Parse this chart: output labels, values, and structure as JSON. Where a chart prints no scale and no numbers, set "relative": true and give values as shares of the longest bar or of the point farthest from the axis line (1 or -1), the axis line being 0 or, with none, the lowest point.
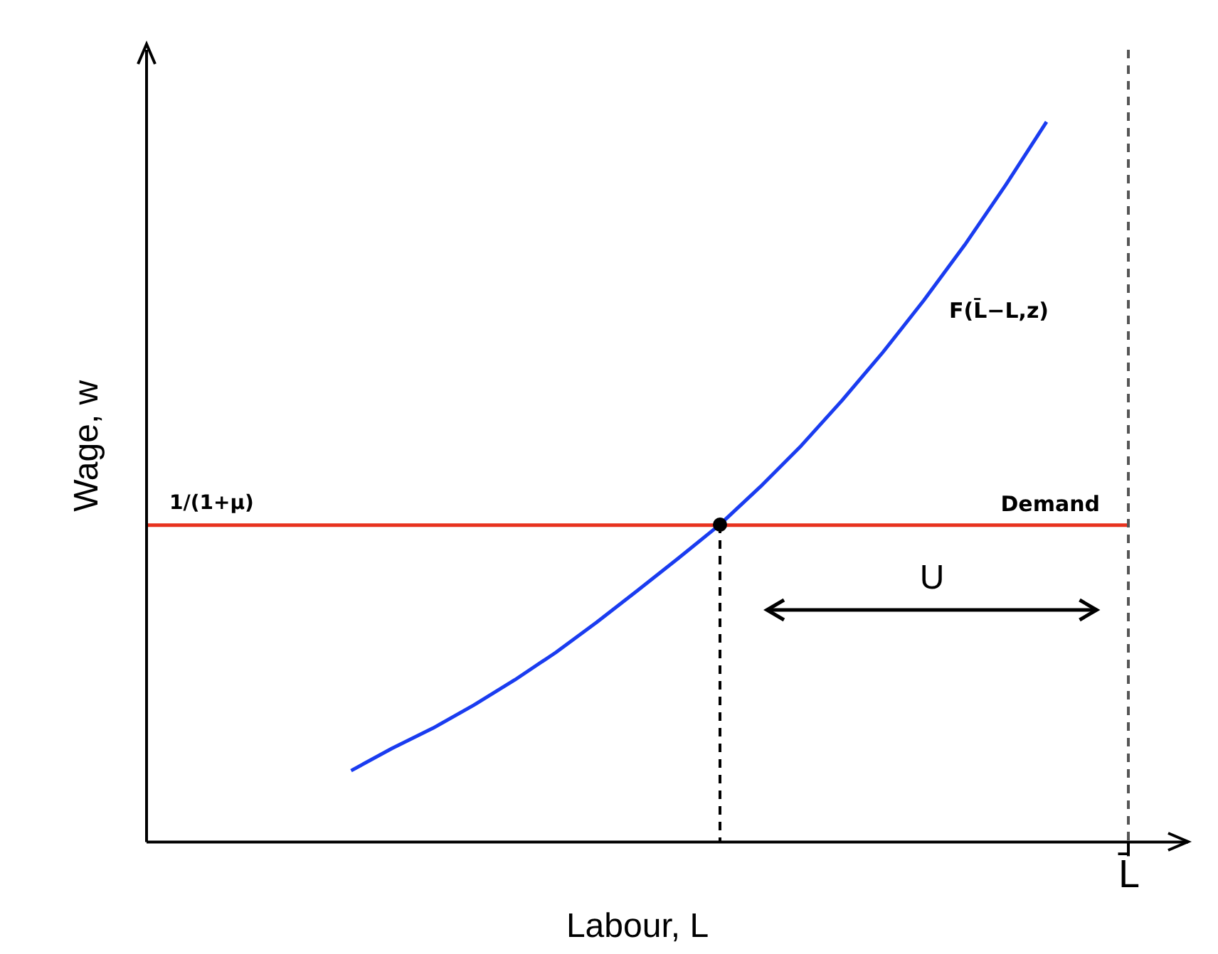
{
  "chart_data": {
    "type": "line",
    "relative": true,
    "xlabel": "Labour, L",
    "ylabel": "Wage, w",
    "legend": false,
    "marker": "none",
    "categories": [
      null,
      null,
      null,
      null,
      null,
      null,
      null,
      null,
      null,
      null,
      null,
      null,
      null,
      null,
      null,
      null,
      null,
      null,
      null,
      null,
      null,
      null,
      null,
      null,
      null
    ],
    "series": [
      {
        "name": "F(L̄−L,z)",
        "color": "#1a3cf0",
        "values": [
          null,
          null,
          null,
          null,
          null,
          0.099,
          0.13,
          0.158,
          0.19,
          0.225,
          0.263,
          0.305,
          0.349,
          0.394,
          0.44,
          0.493,
          0.55,
          0.613,
          0.68,
          0.752,
          0.829,
          0.912,
          1.0,
          null,
          null
        ]
      },
      {
        "name": "Demand",
        "color": "#e8321e",
        "values": [
          0.44,
          0.44,
          0.44,
          0.44,
          0.44,
          0.44,
          0.44,
          0.44,
          0.44,
          0.44,
          0.44,
          0.44,
          0.44,
          0.44,
          0.44,
          0.44,
          0.44,
          0.44,
          0.44,
          0.44,
          0.44,
          0.44,
          0.44,
          0.44,
          0.44
        ]
      }
    ],
    "annotations": [
      "1/(1+μ)",
      "U",
      "L̄"
    ]
  }
}
